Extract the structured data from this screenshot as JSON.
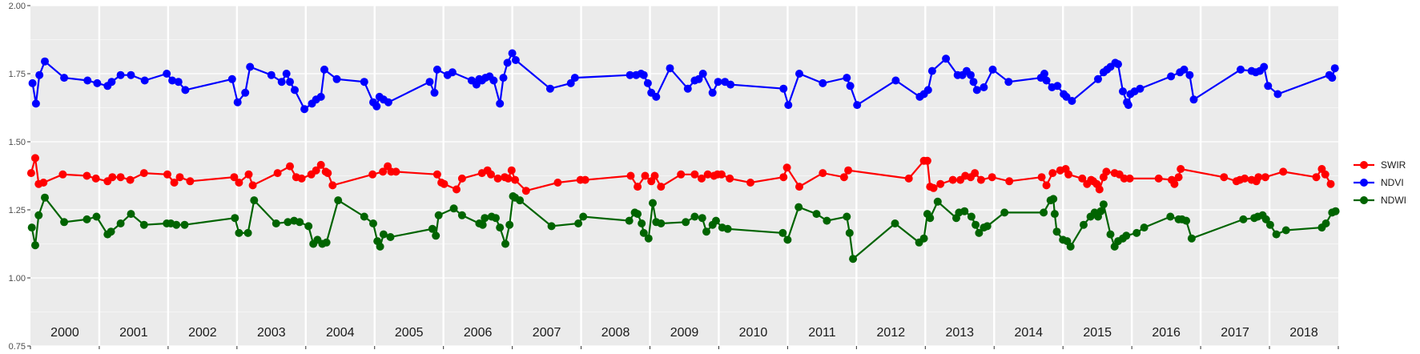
{
  "chart_data": {
    "type": "line",
    "title": "",
    "xlabel": "",
    "ylabel": "",
    "ylim": [
      0.75,
      2.0
    ],
    "xlim": [
      2000.0,
      2019.0
    ],
    "y_ticks": [
      "0.75",
      "1.00",
      "1.25",
      "1.50",
      "1.75",
      "2.00"
    ],
    "year_labels": [
      "2000",
      "2001",
      "2002",
      "2003",
      "2004",
      "2005",
      "2006",
      "2007",
      "2008",
      "2009",
      "2010",
      "2011",
      "2012",
      "2013",
      "2014",
      "2015",
      "2016",
      "2017",
      "2018"
    ],
    "grid": true,
    "legend_position": "right",
    "legend": [
      "SWIR",
      "NDVI",
      "NDWI"
    ],
    "series": [
      {
        "name": "SWIR",
        "color": "#ff0000",
        "x": [
          2000.01,
          2000.07,
          2000.12,
          2000.19,
          2000.47,
          2000.82,
          2000.95,
          2001.12,
          2001.19,
          2001.31,
          2001.45,
          2001.65,
          2001.99,
          2002.09,
          2002.17,
          2002.32,
          2002.96,
          2003.03,
          2003.17,
          2003.23,
          2003.59,
          2003.77,
          2003.86,
          2003.94,
          2004.08,
          2004.15,
          2004.22,
          2004.29,
          2004.32,
          2004.39,
          2004.97,
          2005.12,
          2005.19,
          2005.24,
          2005.31,
          2005.91,
          2005.97,
          2006.01,
          2006.19,
          2006.27,
          2006.56,
          2006.64,
          2006.69,
          2006.79,
          2006.89,
          2006.94,
          2006.99,
          2007.04,
          2007.2,
          2007.66,
          2007.99,
          2008.06,
          2008.72,
          2008.82,
          2008.93,
          2009.02,
          2009.07,
          2009.16,
          2009.45,
          2009.65,
          2009.75,
          2009.84,
          2009.93,
          2009.98,
          2010.04,
          2010.16,
          2010.46,
          2010.94,
          2010.99,
          2011.17,
          2011.51,
          2011.82,
          2011.88,
          2012.76,
          2012.98,
          2013.03,
          2013.07,
          2013.12,
          2013.22,
          2013.4,
          2013.51,
          2013.58,
          2013.66,
          2013.72,
          2013.81,
          2013.97,
          2014.22,
          2014.69,
          2014.76,
          2014.85,
          2014.96,
          2015.04,
          2015.08,
          2015.28,
          2015.35,
          2015.41,
          2015.44,
          2015.49,
          2015.53,
          2015.59,
          2015.63,
          2015.75,
          2015.82,
          2015.89,
          2015.97,
          2016.39,
          2016.58,
          2016.62,
          2016.68,
          2016.71,
          2017.34,
          2017.52,
          2017.57,
          2017.64,
          2017.74,
          2017.81,
          2017.84,
          2017.94,
          2018.2,
          2018.68,
          2018.76,
          2018.81,
          2018.89
        ],
        "values": [
          1.385,
          1.44,
          1.345,
          1.35,
          1.38,
          1.375,
          1.365,
          1.355,
          1.37,
          1.37,
          1.36,
          1.385,
          1.38,
          1.35,
          1.37,
          1.355,
          1.37,
          1.35,
          1.38,
          1.34,
          1.385,
          1.41,
          1.37,
          1.365,
          1.38,
          1.395,
          1.415,
          1.39,
          1.385,
          1.34,
          1.38,
          1.39,
          1.41,
          1.39,
          1.39,
          1.38,
          1.35,
          1.345,
          1.325,
          1.365,
          1.385,
          1.395,
          1.38,
          1.365,
          1.37,
          1.365,
          1.395,
          1.36,
          1.32,
          1.35,
          1.36,
          1.36,
          1.375,
          1.335,
          1.375,
          1.355,
          1.375,
          1.335,
          1.38,
          1.38,
          1.365,
          1.38,
          1.375,
          1.38,
          1.38,
          1.365,
          1.35,
          1.37,
          1.405,
          1.335,
          1.385,
          1.37,
          1.395,
          1.365,
          1.43,
          1.43,
          1.335,
          1.33,
          1.345,
          1.36,
          1.36,
          1.375,
          1.37,
          1.385,
          1.36,
          1.37,
          1.355,
          1.37,
          1.34,
          1.385,
          1.395,
          1.4,
          1.38,
          1.365,
          1.345,
          1.36,
          1.355,
          1.345,
          1.325,
          1.37,
          1.39,
          1.385,
          1.38,
          1.365,
          1.365,
          1.365,
          1.36,
          1.345,
          1.37,
          1.4,
          1.37,
          1.355,
          1.36,
          1.365,
          1.36,
          1.355,
          1.37,
          1.37,
          1.39,
          1.37,
          1.4,
          1.38,
          1.345
        ]
      },
      {
        "name": "NDVI",
        "color": "#0000ff",
        "x": [
          2000.03,
          2000.08,
          2000.13,
          2000.21,
          2000.49,
          2000.83,
          2000.97,
          2001.12,
          2001.18,
          2001.31,
          2001.46,
          2001.66,
          2001.98,
          2002.06,
          2002.15,
          2002.25,
          2002.93,
          2003.01,
          2003.12,
          2003.19,
          2003.5,
          2003.65,
          2003.72,
          2003.77,
          2003.84,
          2003.98,
          2004.09,
          2004.15,
          2004.22,
          2004.27,
          2004.45,
          2004.85,
          2004.98,
          2005.03,
          2005.07,
          2005.13,
          2005.2,
          2005.8,
          2005.87,
          2005.91,
          2006.06,
          2006.13,
          2006.41,
          2006.48,
          2006.52,
          2006.56,
          2006.61,
          2006.67,
          2006.73,
          2006.82,
          2006.87,
          2006.93,
          2007.0,
          2007.05,
          2007.55,
          2007.85,
          2007.91,
          2008.71,
          2008.8,
          2008.87,
          2008.91,
          2008.97,
          2009.02,
          2009.09,
          2009.29,
          2009.55,
          2009.65,
          2009.71,
          2009.77,
          2009.91,
          2009.99,
          2010.09,
          2010.17,
          2010.94,
          2011.01,
          2011.17,
          2011.51,
          2011.86,
          2011.91,
          2012.01,
          2012.57,
          2012.92,
          2012.98,
          2013.04,
          2013.1,
          2013.3,
          2013.47,
          2013.54,
          2013.6,
          2013.66,
          2013.7,
          2013.75,
          2013.85,
          2013.98,
          2014.21,
          2014.68,
          2014.73,
          2014.76,
          2014.84,
          2014.92,
          2015.01,
          2015.05,
          2015.13,
          2015.51,
          2015.59,
          2015.64,
          2015.69,
          2015.76,
          2015.8,
          2015.87,
          2015.93,
          2015.95,
          2015.98,
          2016.04,
          2016.12,
          2016.57,
          2016.7,
          2016.76,
          2016.84,
          2016.9,
          2017.58,
          2017.74,
          2017.8,
          2017.86,
          2017.92,
          2017.98,
          2018.12,
          2018.87,
          2018.91,
          2018.95
        ],
        "values": [
          1.715,
          1.64,
          1.745,
          1.795,
          1.735,
          1.725,
          1.715,
          1.705,
          1.72,
          1.745,
          1.745,
          1.725,
          1.75,
          1.725,
          1.72,
          1.69,
          1.73,
          1.645,
          1.68,
          1.775,
          1.745,
          1.72,
          1.75,
          1.72,
          1.69,
          1.62,
          1.64,
          1.655,
          1.665,
          1.765,
          1.73,
          1.72,
          1.645,
          1.63,
          1.665,
          1.655,
          1.645,
          1.72,
          1.68,
          1.765,
          1.745,
          1.755,
          1.725,
          1.71,
          1.73,
          1.725,
          1.735,
          1.74,
          1.725,
          1.64,
          1.735,
          1.79,
          1.825,
          1.8,
          1.695,
          1.715,
          1.735,
          1.745,
          1.745,
          1.75,
          1.745,
          1.715,
          1.68,
          1.665,
          1.77,
          1.695,
          1.725,
          1.73,
          1.75,
          1.68,
          1.72,
          1.72,
          1.71,
          1.695,
          1.635,
          1.75,
          1.715,
          1.735,
          1.705,
          1.635,
          1.725,
          1.665,
          1.675,
          1.69,
          1.76,
          1.805,
          1.745,
          1.745,
          1.76,
          1.745,
          1.72,
          1.69,
          1.7,
          1.765,
          1.72,
          1.735,
          1.75,
          1.725,
          1.7,
          1.705,
          1.675,
          1.665,
          1.65,
          1.73,
          1.755,
          1.765,
          1.775,
          1.79,
          1.785,
          1.685,
          1.645,
          1.635,
          1.675,
          1.685,
          1.695,
          1.74,
          1.755,
          1.765,
          1.745,
          1.655,
          1.765,
          1.76,
          1.755,
          1.76,
          1.775,
          1.705,
          1.675,
          1.745,
          1.735,
          1.77
        ]
      },
      {
        "name": "NDWI",
        "color": "#006400",
        "x": [
          2000.02,
          2000.07,
          2000.12,
          2000.21,
          2000.49,
          2000.82,
          2000.96,
          2001.12,
          2001.17,
          2001.31,
          2001.46,
          2001.65,
          2001.98,
          2002.04,
          2002.12,
          2002.24,
          2002.97,
          2003.03,
          2003.16,
          2003.25,
          2003.57,
          2003.74,
          2003.83,
          2003.91,
          2004.04,
          2004.11,
          2004.17,
          2004.24,
          2004.3,
          2004.47,
          2004.85,
          2004.98,
          2005.04,
          2005.08,
          2005.13,
          2005.23,
          2005.84,
          2005.89,
          2005.93,
          2006.15,
          2006.27,
          2006.52,
          2006.57,
          2006.6,
          2006.7,
          2006.76,
          2006.82,
          2006.9,
          2006.96,
          2007.01,
          2007.04,
          2007.11,
          2007.57,
          2007.96,
          2008.03,
          2008.7,
          2008.78,
          2008.82,
          2008.88,
          2008.91,
          2008.98,
          2009.04,
          2009.09,
          2009.16,
          2009.52,
          2009.65,
          2009.76,
          2009.82,
          2009.91,
          2009.96,
          2010.05,
          2010.13,
          2010.93,
          2011.0,
          2011.16,
          2011.42,
          2011.57,
          2011.86,
          2011.9,
          2011.95,
          2012.56,
          2012.91,
          2012.98,
          2013.03,
          2013.07,
          2013.18,
          2013.45,
          2013.49,
          2013.57,
          2013.67,
          2013.73,
          2013.78,
          2013.85,
          2013.9,
          2014.15,
          2014.72,
          2014.82,
          2014.86,
          2014.88,
          2014.91,
          2015.0,
          2015.06,
          2015.11,
          2015.3,
          2015.4,
          2015.46,
          2015.51,
          2015.55,
          2015.59,
          2015.69,
          2015.75,
          2015.8,
          2015.87,
          2015.92,
          2016.07,
          2016.18,
          2016.56,
          2016.68,
          2016.73,
          2016.79,
          2016.87,
          2017.62,
          2017.78,
          2017.83,
          2017.9,
          2017.95,
          2018.01,
          2018.1,
          2018.24,
          2018.76,
          2018.82,
          2018.91,
          2018.96
        ],
        "values": [
          1.185,
          1.12,
          1.23,
          1.295,
          1.205,
          1.215,
          1.225,
          1.16,
          1.17,
          1.2,
          1.235,
          1.195,
          1.2,
          1.2,
          1.195,
          1.195,
          1.22,
          1.165,
          1.165,
          1.285,
          1.2,
          1.205,
          1.21,
          1.205,
          1.19,
          1.125,
          1.14,
          1.125,
          1.13,
          1.285,
          1.225,
          1.2,
          1.135,
          1.115,
          1.16,
          1.15,
          1.18,
          1.155,
          1.23,
          1.255,
          1.23,
          1.2,
          1.195,
          1.22,
          1.225,
          1.22,
          1.185,
          1.125,
          1.195,
          1.3,
          1.295,
          1.285,
          1.19,
          1.2,
          1.225,
          1.21,
          1.24,
          1.235,
          1.2,
          1.165,
          1.145,
          1.275,
          1.205,
          1.2,
          1.205,
          1.225,
          1.22,
          1.17,
          1.195,
          1.21,
          1.185,
          1.18,
          1.165,
          1.14,
          1.26,
          1.235,
          1.21,
          1.225,
          1.165,
          1.07,
          1.2,
          1.13,
          1.145,
          1.235,
          1.22,
          1.28,
          1.22,
          1.24,
          1.245,
          1.225,
          1.195,
          1.165,
          1.185,
          1.19,
          1.24,
          1.24,
          1.285,
          1.29,
          1.235,
          1.17,
          1.14,
          1.135,
          1.115,
          1.195,
          1.225,
          1.24,
          1.225,
          1.245,
          1.27,
          1.16,
          1.115,
          1.135,
          1.145,
          1.155,
          1.165,
          1.185,
          1.225,
          1.215,
          1.215,
          1.21,
          1.145,
          1.215,
          1.22,
          1.225,
          1.23,
          1.215,
          1.195,
          1.16,
          1.175,
          1.185,
          1.2,
          1.24,
          1.245
        ]
      }
    ]
  }
}
